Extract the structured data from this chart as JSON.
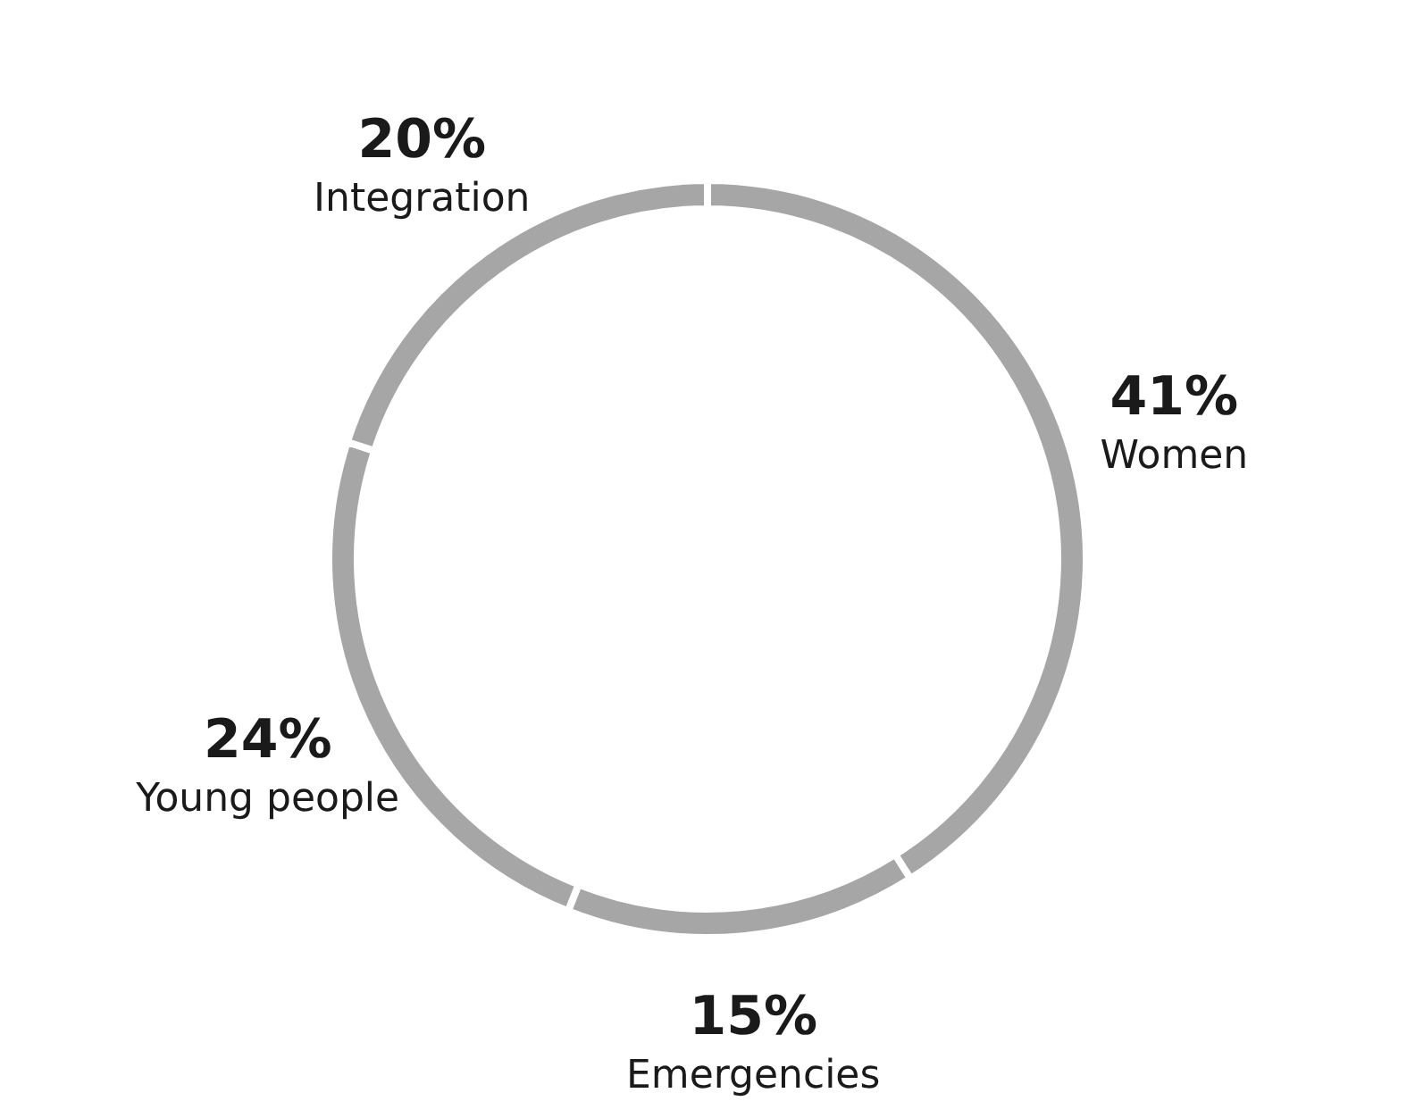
{
  "chart_data": {
    "type": "donut",
    "categories": [
      "Women",
      "Emergencies",
      "Young people",
      "Integration"
    ],
    "values": [
      41,
      15,
      24,
      20
    ],
    "value_labels": [
      "41%",
      "15%",
      "24%",
      "20%"
    ],
    "colors": [
      "#a6a6a6",
      "#a6a6a6",
      "#a6a6a6",
      "#a6a6a6"
    ]
  }
}
